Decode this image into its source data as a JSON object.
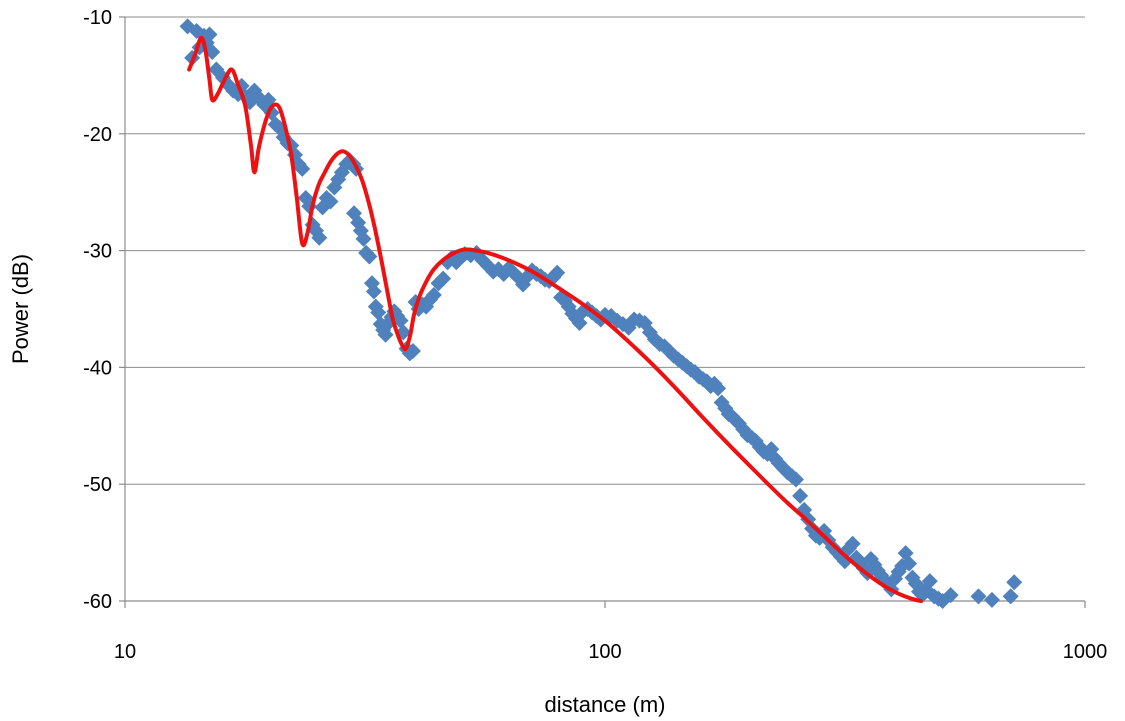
{
  "chart_data": {
    "type": "scatter",
    "title": "",
    "xlabel": "distance (m)",
    "ylabel": "Power (dB)",
    "x_scale": "log",
    "xlim": [
      10,
      1000
    ],
    "ylim": [
      -60,
      -10
    ],
    "x_ticks": [
      10,
      100,
      1000
    ],
    "y_ticks": [
      -60,
      -50,
      -40,
      -30,
      -20,
      -10
    ],
    "x_tick_labels": [
      "10",
      "100",
      "1000"
    ],
    "y_tick_labels": [
      "-60",
      "-50",
      "-40",
      "-30",
      "-20",
      "-10"
    ],
    "grid": "horizontal",
    "legend": "none",
    "colors": {
      "scatter": "#4f81bd",
      "line": "#ee1111",
      "grid": "#8c8c8c"
    },
    "series": [
      {
        "kind": "scatter",
        "marker": "diamond",
        "points": [
          [
            13.5,
            -10.8
          ],
          [
            13.8,
            -13.5
          ],
          [
            14.1,
            -11.2
          ],
          [
            14.3,
            -12.6
          ],
          [
            14.6,
            -11.6
          ],
          [
            14.8,
            -12.2
          ],
          [
            15.0,
            -11.5
          ],
          [
            15.2,
            -13.0
          ],
          [
            15.5,
            -14.5
          ],
          [
            16.0,
            -15.2
          ],
          [
            16.4,
            -15.8
          ],
          [
            16.8,
            -16.3
          ],
          [
            17.2,
            -16.6
          ],
          [
            17.5,
            -15.9
          ],
          [
            17.8,
            -16.8
          ],
          [
            18.2,
            -17.3
          ],
          [
            18.6,
            -16.3
          ],
          [
            19.0,
            -16.9
          ],
          [
            19.5,
            -17.5
          ],
          [
            19.9,
            -17.1
          ],
          [
            20.2,
            -18.2
          ],
          [
            20.6,
            -19.2
          ],
          [
            21.0,
            -19.5
          ],
          [
            21.4,
            -20.3
          ],
          [
            21.8,
            -20.8
          ],
          [
            22.2,
            -21.0
          ],
          [
            22.6,
            -21.8
          ],
          [
            23.0,
            -22.6
          ],
          [
            23.4,
            -23.0
          ],
          [
            23.8,
            -25.5
          ],
          [
            24.2,
            -26.2
          ],
          [
            24.6,
            -27.8
          ],
          [
            25.0,
            -28.3
          ],
          [
            25.4,
            -28.9
          ],
          [
            25.8,
            -26.3
          ],
          [
            26.3,
            -25.5
          ],
          [
            26.8,
            -25.8
          ],
          [
            27.3,
            -24.6
          ],
          [
            27.8,
            -23.9
          ],
          [
            28.3,
            -23.3
          ],
          [
            28.9,
            -22.6
          ],
          [
            29.4,
            -22.3
          ],
          [
            29.9,
            -22.6
          ],
          [
            30.3,
            -23.0
          ],
          [
            30.0,
            -26.8
          ],
          [
            30.6,
            -27.6
          ],
          [
            31.0,
            -28.3
          ],
          [
            31.4,
            -29.0
          ],
          [
            31.8,
            -30.2
          ],
          [
            32.3,
            -30.5
          ],
          [
            32.7,
            -32.8
          ],
          [
            33.0,
            -33.5
          ],
          [
            33.3,
            -34.8
          ],
          [
            33.7,
            -35.3
          ],
          [
            34.1,
            -36.3
          ],
          [
            34.5,
            -36.8
          ],
          [
            34.9,
            -37.2
          ],
          [
            35.4,
            -36.2
          ],
          [
            35.9,
            -35.7
          ],
          [
            36.4,
            -35.2
          ],
          [
            36.9,
            -35.6
          ],
          [
            37.5,
            -36.0
          ],
          [
            38.0,
            -37.0
          ],
          [
            38.6,
            -38.4
          ],
          [
            39.2,
            -38.8
          ],
          [
            39.8,
            -38.6
          ],
          [
            40.3,
            -34.4
          ],
          [
            40.9,
            -35.0
          ],
          [
            41.6,
            -34.6
          ],
          [
            42.4,
            -34.8
          ],
          [
            43.2,
            -34.2
          ],
          [
            44.0,
            -33.8
          ],
          [
            45.0,
            -32.8
          ],
          [
            46.0,
            -32.4
          ],
          [
            47.0,
            -31.0
          ],
          [
            48.0,
            -30.6
          ],
          [
            49.0,
            -31.0
          ],
          [
            50.0,
            -30.6
          ],
          [
            51.0,
            -30.3
          ],
          [
            52.5,
            -30.4
          ],
          [
            54.0,
            -30.2
          ],
          [
            55.5,
            -30.8
          ],
          [
            57.0,
            -31.3
          ],
          [
            58.5,
            -31.8
          ],
          [
            60.0,
            -31.6
          ],
          [
            61.5,
            -32.0
          ],
          [
            63.0,
            -31.5
          ],
          [
            64.5,
            -31.9
          ],
          [
            66.0,
            -32.3
          ],
          [
            67.5,
            -32.9
          ],
          [
            69.0,
            -32.2
          ],
          [
            70.5,
            -31.7
          ],
          [
            72.0,
            -32.0
          ],
          [
            73.5,
            -32.2
          ],
          [
            75.0,
            -32.5
          ],
          [
            76.5,
            -32.6
          ],
          [
            78.0,
            -32.3
          ],
          [
            79.5,
            -31.9
          ],
          [
            81.0,
            -34.0
          ],
          [
            82.5,
            -34.3
          ],
          [
            84.0,
            -34.8
          ],
          [
            85.5,
            -35.4
          ],
          [
            87.0,
            -35.8
          ],
          [
            88.5,
            -36.2
          ],
          [
            90.0,
            -35.2
          ],
          [
            92.0,
            -35.0
          ],
          [
            94.0,
            -35.3
          ],
          [
            96.0,
            -35.6
          ],
          [
            98.0,
            -35.9
          ],
          [
            100.0,
            -35.5
          ],
          [
            103.0,
            -35.6
          ],
          [
            106.0,
            -36.0
          ],
          [
            109.0,
            -36.3
          ],
          [
            112.0,
            -36.6
          ],
          [
            115.0,
            -35.9
          ],
          [
            118.0,
            -36.0
          ],
          [
            121.0,
            -36.2
          ],
          [
            124.0,
            -37.0
          ],
          [
            127.0,
            -37.6
          ],
          [
            130.0,
            -38.0
          ],
          [
            133.0,
            -38.2
          ],
          [
            136.0,
            -38.6
          ],
          [
            139.0,
            -39.0
          ],
          [
            142.0,
            -39.3
          ],
          [
            145.0,
            -39.6
          ],
          [
            148.0,
            -39.9
          ],
          [
            151.0,
            -40.2
          ],
          [
            154.0,
            -40.4
          ],
          [
            157.0,
            -40.8
          ],
          [
            160.0,
            -41.0
          ],
          [
            163.0,
            -41.2
          ],
          [
            166.0,
            -41.6
          ],
          [
            169.0,
            -41.4
          ],
          [
            172.0,
            -41.8
          ],
          [
            175.0,
            -43.0
          ],
          [
            178.0,
            -43.5
          ],
          [
            181.0,
            -44.0
          ],
          [
            184.0,
            -44.2
          ],
          [
            187.0,
            -44.5
          ],
          [
            190.0,
            -44.8
          ],
          [
            194.0,
            -45.3
          ],
          [
            198.0,
            -45.8
          ],
          [
            202.0,
            -46.0
          ],
          [
            206.0,
            -46.3
          ],
          [
            210.0,
            -46.8
          ],
          [
            214.0,
            -47.2
          ],
          [
            218.0,
            -47.4
          ],
          [
            222.0,
            -47.0
          ],
          [
            226.0,
            -47.8
          ],
          [
            230.0,
            -48.2
          ],
          [
            235.0,
            -48.6
          ],
          [
            240.0,
            -49.0
          ],
          [
            245.0,
            -49.3
          ],
          [
            250.0,
            -49.6
          ],
          [
            255.0,
            -51.0
          ],
          [
            260.0,
            -52.2
          ],
          [
            265.0,
            -53.0
          ],
          [
            270.0,
            -53.8
          ],
          [
            275.0,
            -54.4
          ],
          [
            280.0,
            -54.6
          ],
          [
            286.0,
            -54.0
          ],
          [
            292.0,
            -54.8
          ],
          [
            298.0,
            -55.4
          ],
          [
            304.0,
            -55.8
          ],
          [
            310.0,
            -56.2
          ],
          [
            316.0,
            -56.6
          ],
          [
            322.0,
            -55.5
          ],
          [
            328.0,
            -55.1
          ],
          [
            334.0,
            -56.3
          ],
          [
            340.0,
            -56.7
          ],
          [
            346.0,
            -57.2
          ],
          [
            352.0,
            -57.6
          ],
          [
            358.0,
            -56.4
          ],
          [
            364.0,
            -56.9
          ],
          [
            370.0,
            -57.4
          ],
          [
            376.0,
            -57.8
          ],
          [
            382.0,
            -58.2
          ],
          [
            388.0,
            -58.6
          ],
          [
            395.0,
            -59.0
          ],
          [
            402.0,
            -58.1
          ],
          [
            409.0,
            -57.5
          ],
          [
            416.0,
            -57.0
          ],
          [
            423.0,
            -55.9
          ],
          [
            430.0,
            -56.8
          ],
          [
            437.0,
            -58.0
          ],
          [
            444.0,
            -58.5
          ],
          [
            451.0,
            -59.2
          ],
          [
            458.0,
            -59.5
          ],
          [
            466.0,
            -59.0
          ],
          [
            475.0,
            -58.3
          ],
          [
            485.0,
            -59.6
          ],
          [
            495.0,
            -59.8
          ],
          [
            505.0,
            -60.0
          ],
          [
            525.0,
            -59.5
          ],
          [
            600.0,
            -59.6
          ],
          [
            640.0,
            -59.9
          ],
          [
            700.0,
            -59.6
          ],
          [
            712.0,
            -58.4
          ]
        ]
      },
      {
        "kind": "line",
        "points": [
          [
            13.6,
            -14.5
          ],
          [
            14.0,
            -13.2
          ],
          [
            14.4,
            -11.8
          ],
          [
            14.7,
            -12.8
          ],
          [
            15.0,
            -15.4
          ],
          [
            15.2,
            -17.1
          ],
          [
            15.6,
            -16.6
          ],
          [
            16.2,
            -15.2
          ],
          [
            16.7,
            -14.5
          ],
          [
            17.2,
            -15.8
          ],
          [
            17.8,
            -17.6
          ],
          [
            18.3,
            -21.0
          ],
          [
            18.6,
            -23.3
          ],
          [
            19.0,
            -21.2
          ],
          [
            19.5,
            -19.3
          ],
          [
            20.0,
            -18.0
          ],
          [
            20.5,
            -17.5
          ],
          [
            21.0,
            -17.8
          ],
          [
            21.6,
            -19.5
          ],
          [
            22.2,
            -21.8
          ],
          [
            22.8,
            -25.5
          ],
          [
            23.4,
            -29.4
          ],
          [
            24.0,
            -28.5
          ],
          [
            24.6,
            -26.1
          ],
          [
            25.3,
            -24.4
          ],
          [
            26.0,
            -23.4
          ],
          [
            26.8,
            -22.4
          ],
          [
            27.7,
            -21.7
          ],
          [
            28.5,
            -21.5
          ],
          [
            29.4,
            -21.9
          ],
          [
            30.3,
            -22.8
          ],
          [
            31.2,
            -24.0
          ],
          [
            32.2,
            -25.9
          ],
          [
            33.2,
            -28.2
          ],
          [
            34.2,
            -30.8
          ],
          [
            35.2,
            -33.5
          ],
          [
            36.1,
            -35.8
          ],
          [
            37.0,
            -37.2
          ],
          [
            37.8,
            -38.1
          ],
          [
            38.5,
            -38.4
          ],
          [
            39.3,
            -37.2
          ],
          [
            40.0,
            -35.5
          ],
          [
            41.0,
            -34.0
          ],
          [
            42.5,
            -32.6
          ],
          [
            44.0,
            -31.6
          ],
          [
            46.0,
            -30.8
          ],
          [
            48.5,
            -30.2
          ],
          [
            51.0,
            -29.9
          ],
          [
            54.0,
            -30.0
          ],
          [
            57.0,
            -30.2
          ],
          [
            61.0,
            -30.6
          ],
          [
            66.0,
            -31.2
          ],
          [
            72.0,
            -32.0
          ],
          [
            80.0,
            -33.2
          ],
          [
            90.0,
            -34.6
          ],
          [
            100.0,
            -36.0
          ],
          [
            112.0,
            -37.8
          ],
          [
            126.0,
            -39.8
          ],
          [
            142.0,
            -42.0
          ],
          [
            160.0,
            -44.3
          ],
          [
            180.0,
            -46.5
          ],
          [
            200.0,
            -48.4
          ],
          [
            220.0,
            -50.1
          ],
          [
            240.0,
            -51.6
          ],
          [
            262.0,
            -53.0
          ],
          [
            285.0,
            -54.4
          ],
          [
            310.0,
            -55.8
          ],
          [
            335.0,
            -57.0
          ],
          [
            360.0,
            -58.0
          ],
          [
            385.0,
            -58.8
          ],
          [
            410.0,
            -59.4
          ],
          [
            435.0,
            -59.8
          ],
          [
            455.0,
            -60.0
          ]
        ]
      }
    ]
  }
}
